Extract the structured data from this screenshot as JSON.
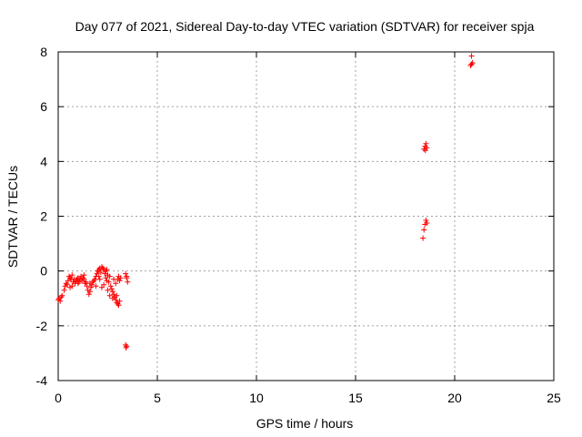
{
  "chart_data": {
    "type": "scatter",
    "title": "Day 077 of 2021, Sidereal Day-to-day VTEC variation (SDTVAR) for receiver spja",
    "xlabel": "GPS time / hours",
    "ylabel": "SDTVAR / TECUs",
    "xlim": [
      0,
      25
    ],
    "ylim": [
      -4,
      8
    ],
    "x_ticks": [
      0,
      5,
      10,
      15,
      20,
      25
    ],
    "y_ticks": [
      -4,
      -2,
      0,
      2,
      4,
      6,
      8
    ],
    "x_tick_labels": [
      "0",
      "5",
      "10",
      "15",
      "20",
      "25"
    ],
    "y_tick_labels": [
      "-4",
      "-2",
      "0",
      "2",
      "4",
      "6",
      "8"
    ],
    "grid": true,
    "marker": "+",
    "color": "#ff0000",
    "series": [
      {
        "name": "SDTVAR",
        "points": [
          [
            0.0,
            -1.05
          ],
          [
            0.05,
            -1.0
          ],
          [
            0.1,
            -1.1
          ],
          [
            0.15,
            -0.95
          ],
          [
            0.2,
            -0.9
          ],
          [
            0.3,
            -0.7
          ],
          [
            0.35,
            -0.55
          ],
          [
            0.4,
            -0.45
          ],
          [
            0.45,
            -0.5
          ],
          [
            0.5,
            -0.35
          ],
          [
            0.55,
            -0.2
          ],
          [
            0.6,
            -0.25
          ],
          [
            0.65,
            -0.3
          ],
          [
            0.7,
            -0.15
          ],
          [
            0.75,
            -0.4
          ],
          [
            0.8,
            -0.3
          ],
          [
            0.85,
            -0.45
          ],
          [
            0.9,
            -0.35
          ],
          [
            0.95,
            -0.3
          ],
          [
            1.0,
            -0.25
          ],
          [
            1.05,
            -0.4
          ],
          [
            1.1,
            -0.3
          ],
          [
            1.15,
            -0.2
          ],
          [
            1.2,
            -0.35
          ],
          [
            1.25,
            -0.25
          ],
          [
            1.3,
            -0.3
          ],
          [
            1.35,
            -0.45
          ],
          [
            1.4,
            -0.4
          ],
          [
            1.45,
            -0.55
          ],
          [
            1.5,
            -0.7
          ],
          [
            1.55,
            -0.85
          ],
          [
            1.6,
            -0.75
          ],
          [
            1.65,
            -0.6
          ],
          [
            1.7,
            -0.5
          ],
          [
            1.75,
            -0.4
          ],
          [
            1.8,
            -0.35
          ],
          [
            1.85,
            -0.3
          ],
          [
            1.9,
            -0.2
          ],
          [
            1.95,
            -0.1
          ],
          [
            2.0,
            0.0
          ],
          [
            2.05,
            0.05
          ],
          [
            2.1,
            0.1
          ],
          [
            2.15,
            -0.05
          ],
          [
            2.2,
            0.15
          ],
          [
            2.25,
            0.1
          ],
          [
            2.3,
            0.05
          ],
          [
            2.35,
            -0.1
          ],
          [
            2.4,
            -0.25
          ],
          [
            2.45,
            0.05
          ],
          [
            2.5,
            -0.15
          ],
          [
            2.55,
            -0.4
          ],
          [
            2.6,
            -0.2
          ],
          [
            2.65,
            -0.55
          ],
          [
            2.7,
            -0.65
          ],
          [
            2.75,
            -0.75
          ],
          [
            2.8,
            -0.85
          ],
          [
            2.85,
            -0.95
          ],
          [
            2.9,
            -1.05
          ],
          [
            2.95,
            -1.15
          ],
          [
            3.0,
            -1.2
          ],
          [
            3.05,
            -1.25
          ],
          [
            3.1,
            -1.1
          ],
          [
            2.8,
            -0.3
          ],
          [
            2.9,
            -0.45
          ],
          [
            3.0,
            -0.3
          ],
          [
            3.05,
            -0.2
          ],
          [
            3.1,
            -0.35
          ],
          [
            3.15,
            -0.25
          ],
          [
            2.1,
            -0.3
          ],
          [
            2.3,
            -0.5
          ],
          [
            2.5,
            -0.7
          ],
          [
            1.9,
            -0.55
          ],
          [
            2.2,
            -0.6
          ],
          [
            2.6,
            -0.9
          ],
          [
            1.6,
            -0.45
          ],
          [
            1.3,
            -0.15
          ],
          [
            1.0,
            -0.45
          ],
          [
            0.7,
            -0.55
          ],
          [
            0.6,
            -0.6
          ],
          [
            2.05,
            -0.2
          ],
          [
            2.45,
            -0.35
          ],
          [
            2.75,
            -1.0
          ],
          [
            2.95,
            -0.9
          ],
          [
            2.4,
            0.0
          ],
          [
            3.4,
            -0.1
          ],
          [
            3.45,
            -0.25
          ],
          [
            3.5,
            -0.4
          ],
          [
            3.45,
            -0.2
          ],
          [
            3.4,
            -2.7
          ],
          [
            3.45,
            -2.75
          ],
          [
            3.42,
            -2.8
          ],
          [
            18.4,
            1.2
          ],
          [
            18.45,
            1.5
          ],
          [
            18.5,
            1.7
          ],
          [
            18.55,
            1.85
          ],
          [
            18.6,
            1.75
          ],
          [
            18.45,
            4.45
          ],
          [
            18.5,
            4.55
          ],
          [
            18.55,
            4.65
          ],
          [
            18.6,
            4.5
          ],
          [
            18.52,
            4.4
          ],
          [
            20.8,
            7.5
          ],
          [
            20.85,
            7.55
          ],
          [
            20.9,
            7.6
          ],
          [
            20.85,
            7.85
          ]
        ]
      }
    ]
  }
}
